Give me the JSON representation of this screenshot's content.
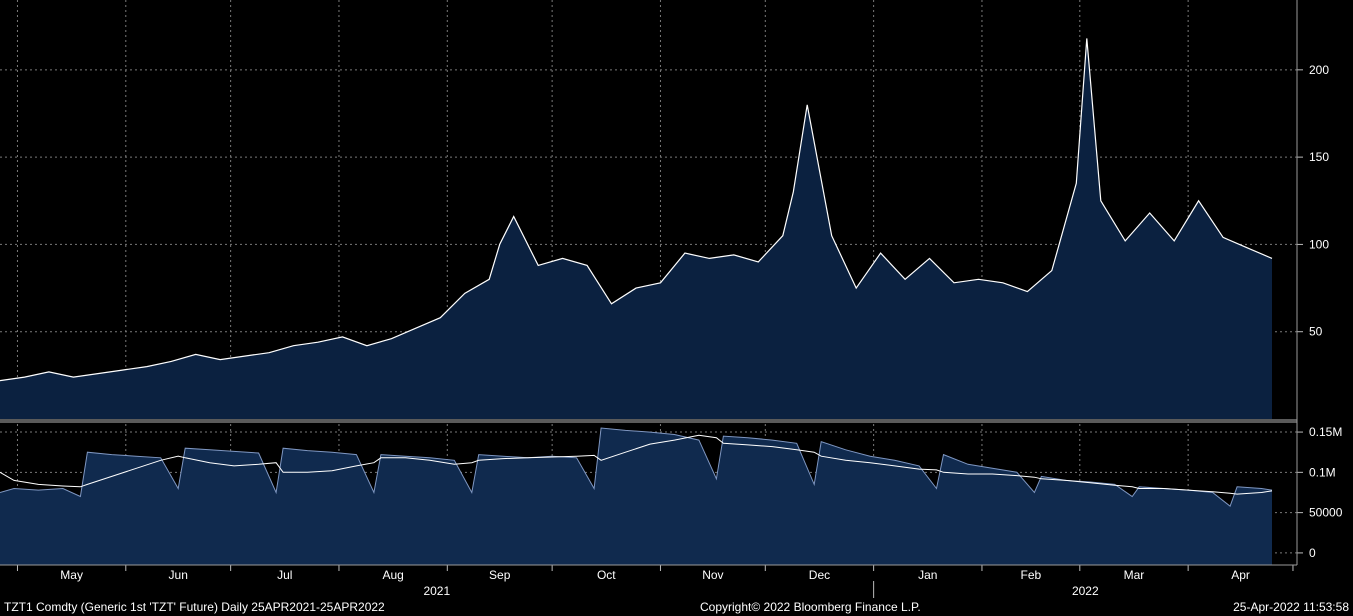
{
  "footer": {
    "left": "TZT1 Comdty (Generic 1st 'TZT' Future)  Daily 25APR2021-25APR2022",
    "center": "Copyright© 2022 Bloomberg Finance L.P.",
    "right": "25-Apr-2022 11:53:58"
  },
  "colors": {
    "background": "#000000",
    "fill": "#0b2140",
    "line": "#ffffff",
    "vol_fill": "#102a4e",
    "vol_line": "#7f97c2",
    "grid": "#7a7a7a",
    "separator": "#5a5a5a"
  },
  "chart_data": [
    {
      "type": "area",
      "title": "",
      "x_start": "2021-04-26",
      "x_end": "2022-04-25",
      "ylim": [
        0,
        240
      ],
      "yticks": [
        50,
        100,
        150,
        200
      ],
      "grid": true,
      "x": [
        "2021-04-26",
        "2021-05-03",
        "2021-05-10",
        "2021-05-17",
        "2021-05-24",
        "2021-05-31",
        "2021-06-07",
        "2021-06-14",
        "2021-06-21",
        "2021-06-28",
        "2021-07-05",
        "2021-07-12",
        "2021-07-19",
        "2021-07-26",
        "2021-08-02",
        "2021-08-09",
        "2021-08-16",
        "2021-08-23",
        "2021-08-30",
        "2021-09-06",
        "2021-09-13",
        "2021-09-16",
        "2021-09-20",
        "2021-09-27",
        "2021-10-04",
        "2021-10-11",
        "2021-10-18",
        "2021-10-25",
        "2021-11-01",
        "2021-11-08",
        "2021-11-15",
        "2021-11-22",
        "2021-11-29",
        "2021-12-06",
        "2021-12-09",
        "2021-12-13",
        "2021-12-20",
        "2021-12-27",
        "2022-01-03",
        "2022-01-10",
        "2022-01-17",
        "2022-01-24",
        "2022-01-31",
        "2022-02-07",
        "2022-02-14",
        "2022-02-21",
        "2022-02-28",
        "2022-03-03",
        "2022-03-07",
        "2022-03-14",
        "2022-03-21",
        "2022-03-28",
        "2022-04-04",
        "2022-04-11",
        "2022-04-18",
        "2022-04-25"
      ],
      "values": [
        22,
        24,
        27,
        24,
        26,
        28,
        30,
        33,
        37,
        34,
        36,
        38,
        42,
        44,
        47,
        42,
        46,
        52,
        58,
        72,
        80,
        100,
        116,
        88,
        92,
        88,
        66,
        75,
        78,
        95,
        92,
        94,
        90,
        105,
        130,
        180,
        105,
        75,
        95,
        80,
        92,
        78,
        80,
        78,
        73,
        85,
        135,
        218,
        125,
        102,
        118,
        102,
        125,
        104,
        98,
        92
      ]
    },
    {
      "type": "area",
      "title": "",
      "x_start": "2021-04-26",
      "x_end": "2022-04-25",
      "ylim": [
        0,
        160000
      ],
      "yticks": [
        0,
        50000,
        100000,
        150000
      ],
      "ytick_labels": [
        "0",
        "50000",
        "0.1M",
        "0.15M"
      ],
      "grid": true,
      "x": [
        "2021-04-26",
        "2021-04-30",
        "2021-05-07",
        "2021-05-14",
        "2021-05-19",
        "2021-05-21",
        "2021-05-28",
        "2021-06-04",
        "2021-06-11",
        "2021-06-16",
        "2021-06-18",
        "2021-06-25",
        "2021-07-02",
        "2021-07-09",
        "2021-07-14",
        "2021-07-16",
        "2021-07-23",
        "2021-07-30",
        "2021-08-06",
        "2021-08-11",
        "2021-08-13",
        "2021-08-20",
        "2021-08-27",
        "2021-09-03",
        "2021-09-08",
        "2021-09-10",
        "2021-09-17",
        "2021-09-24",
        "2021-10-01",
        "2021-10-08",
        "2021-10-13",
        "2021-10-15",
        "2021-10-22",
        "2021-10-29",
        "2021-11-05",
        "2021-11-12",
        "2021-11-17",
        "2021-11-19",
        "2021-11-26",
        "2021-12-03",
        "2021-12-10",
        "2021-12-15",
        "2021-12-17",
        "2021-12-24",
        "2021-12-31",
        "2022-01-07",
        "2022-01-14",
        "2022-01-19",
        "2022-01-21",
        "2022-01-28",
        "2022-02-04",
        "2022-02-11",
        "2022-02-16",
        "2022-02-18",
        "2022-02-25",
        "2022-03-04",
        "2022-03-11",
        "2022-03-16",
        "2022-03-18",
        "2022-03-25",
        "2022-04-01",
        "2022-04-08",
        "2022-04-13",
        "2022-04-15",
        "2022-04-22",
        "2022-04-25"
      ],
      "series": [
        {
          "values": [
            75000,
            80000,
            78000,
            80000,
            70000,
            125000,
            122000,
            120000,
            118000,
            80000,
            130000,
            128000,
            126000,
            124000,
            75000,
            130000,
            127000,
            125000,
            122000,
            75000,
            122000,
            120000,
            118000,
            115000,
            75000,
            122000,
            120000,
            118000,
            120000,
            118000,
            80000,
            155000,
            152000,
            150000,
            147000,
            140000,
            92000,
            145000,
            143000,
            140000,
            136000,
            85000,
            138000,
            128000,
            120000,
            115000,
            108000,
            80000,
            122000,
            110000,
            105000,
            100000,
            75000,
            95000,
            90000,
            88000,
            85000,
            70000,
            82000,
            80000,
            78000,
            75000,
            58000,
            82000,
            80000,
            78000
          ]
        },
        {
          "values": [
            100000,
            90000,
            85000,
            83000,
            82000,
            85000,
            95000,
            105000,
            115000,
            120000,
            118000,
            112000,
            108000,
            110000,
            112000,
            100000,
            100000,
            102000,
            108000,
            112000,
            118000,
            118000,
            115000,
            110000,
            112000,
            115000,
            117000,
            118000,
            119000,
            120000,
            121000,
            115000,
            125000,
            135000,
            140000,
            146000,
            143000,
            136000,
            134000,
            132000,
            128000,
            125000,
            120000,
            115000,
            112000,
            108000,
            104000,
            103000,
            100000,
            98000,
            98000,
            96000,
            94000,
            92000,
            90000,
            87000,
            84000,
            82000,
            80000,
            80000,
            78000,
            76000,
            74000,
            73000,
            75000,
            77000
          ]
        }
      ]
    }
  ],
  "x_axis": {
    "months": [
      "May",
      "Jun",
      "Jul",
      "Aug",
      "Sep",
      "Oct",
      "Nov",
      "Dec",
      "Jan",
      "Feb",
      "Mar",
      "Apr"
    ],
    "years": [
      "2021",
      "2022"
    ]
  }
}
